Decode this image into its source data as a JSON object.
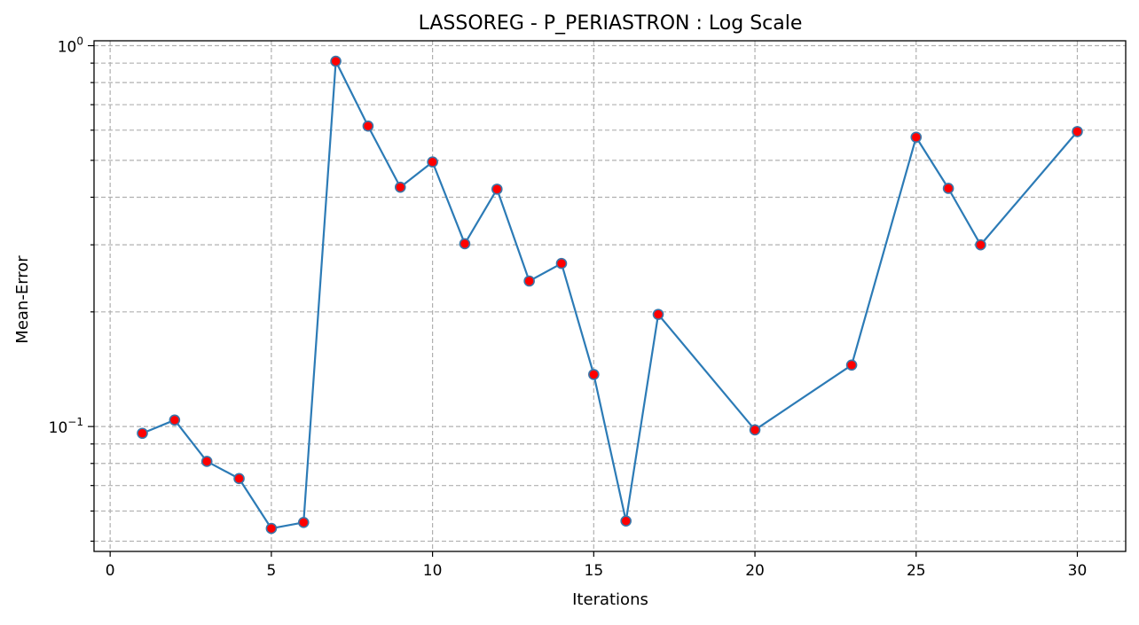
{
  "chart_data": {
    "type": "line",
    "title": "LASSOREG - P_PERIASTRON : Log Scale",
    "xlabel": "Iterations",
    "ylabel": "Mean-Error",
    "y_scale": "log",
    "xlim": [
      -0.5,
      31.5
    ],
    "ylim": [
      0.047,
      1.03
    ],
    "x_ticks": [
      0,
      5,
      10,
      15,
      20,
      25,
      30
    ],
    "y_major_ticks": [
      {
        "value": 0.1,
        "base": "10",
        "exp": "−1"
      },
      {
        "value": 1,
        "base": "10",
        "exp": "0"
      }
    ],
    "y_minor_ticks": [
      0.05,
      0.06,
      0.07,
      0.08,
      0.09,
      0.2,
      0.3,
      0.4,
      0.5,
      0.6,
      0.7,
      0.8,
      0.9
    ],
    "grid": true,
    "line_color": "#2c7bb6",
    "marker_face": "#ff0000",
    "marker_edge": "#3a77aa",
    "series": [
      {
        "x": [
          1,
          2,
          3,
          4,
          5,
          6,
          7,
          8,
          9,
          10,
          11,
          12,
          13,
          14,
          15,
          16,
          17,
          20,
          23,
          25,
          26,
          27,
          30
        ],
        "values": [
          0.096,
          0.104,
          0.081,
          0.073,
          0.054,
          0.056,
          0.91,
          0.615,
          0.425,
          0.495,
          0.302,
          0.42,
          0.241,
          0.268,
          0.137,
          0.0565,
          0.197,
          0.098,
          0.145,
          0.575,
          0.422,
          0.3,
          0.595
        ]
      }
    ]
  }
}
